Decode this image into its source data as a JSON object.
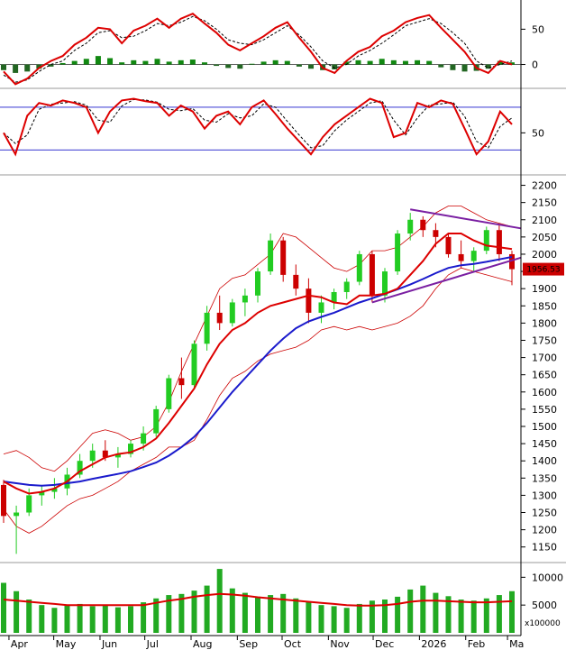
{
  "colors": {
    "up": "#22cc22",
    "down": "#cc0000",
    "ma_red": "#dd0000",
    "ma_blue": "#1a1acc",
    "band": "#cc0000",
    "trend_purple": "#7a1fa2",
    "macd_hist_up": "#118811",
    "macd_hist_down": "#226622",
    "rsi_level": "#1a1acc",
    "volume": "#22aa22",
    "last_price_bg": "#cc0000"
  },
  "last_price_label": "1956.53",
  "volume_unit": "x100000",
  "chart_data": [
    {
      "id": "macd",
      "type": "line",
      "y_ticks": [
        50,
        0
      ],
      "ylim": [
        -30,
        85
      ],
      "signal": [
        -15,
        -25,
        -22,
        -10,
        0,
        5,
        20,
        30,
        45,
        48,
        38,
        40,
        48,
        58,
        55,
        60,
        68,
        62,
        50,
        35,
        30,
        28,
        35,
        45,
        55,
        42,
        25,
        5,
        -5,
        0,
        12,
        20,
        30,
        42,
        55,
        60,
        65,
        58,
        45,
        30,
        5,
        -5,
        0,
        5
      ],
      "macd": [
        -10,
        -28,
        -20,
        -5,
        5,
        12,
        28,
        38,
        52,
        50,
        30,
        48,
        55,
        65,
        52,
        65,
        72,
        58,
        45,
        28,
        20,
        30,
        40,
        52,
        60,
        38,
        18,
        -5,
        -12,
        5,
        18,
        25,
        40,
        48,
        60,
        66,
        70,
        52,
        35,
        18,
        -5,
        -12,
        5,
        0
      ],
      "histogram": [
        -8,
        -12,
        -10,
        -6,
        -3,
        2,
        5,
        8,
        12,
        9,
        3,
        6,
        5,
        8,
        4,
        6,
        7,
        3,
        -2,
        -5,
        -6,
        1,
        4,
        6,
        5,
        -3,
        -6,
        -8,
        -7,
        4,
        6,
        5,
        8,
        6,
        5,
        6,
        5,
        -4,
        -8,
        -10,
        -9,
        -6,
        5,
        3
      ]
    },
    {
      "id": "rsi",
      "type": "line",
      "y_ticks": [
        50
      ],
      "ylim": [
        5,
        100
      ],
      "levels": [
        80,
        30
      ],
      "rsi": [
        50,
        25,
        70,
        85,
        82,
        88,
        85,
        80,
        50,
        75,
        88,
        90,
        87,
        85,
        70,
        82,
        75,
        55,
        70,
        75,
        60,
        80,
        88,
        72,
        55,
        40,
        25,
        45,
        60,
        70,
        80,
        90,
        85,
        45,
        50,
        85,
        80,
        88,
        84,
        55,
        25,
        40,
        75,
        60
      ]
    },
    {
      "id": "price",
      "type": "candlestick",
      "y_ticks": [
        2200,
        2150,
        2100,
        2050,
        2000,
        1950,
        1900,
        1850,
        1800,
        1750,
        1700,
        1650,
        1600,
        1550,
        1500,
        1450,
        1400,
        1350,
        1300,
        1250,
        1200,
        1150
      ],
      "ylim": [
        1110,
        2225
      ],
      "x_ticks": [
        "Apr",
        "May",
        "Jun",
        "Jul",
        "Aug",
        "Sep",
        "Oct",
        "Nov",
        "Dec",
        "2026",
        "Feb",
        "Ma"
      ],
      "x_tick_days": [
        0,
        30,
        61,
        91,
        122,
        153,
        183,
        214,
        244,
        275,
        306,
        334
      ],
      "day_span": [
        -6,
        343
      ],
      "ohlc": [
        [
          1330,
          1345,
          1220,
          1240
        ],
        [
          1240,
          1270,
          1130,
          1250
        ],
        [
          1250,
          1320,
          1240,
          1300
        ],
        [
          1300,
          1330,
          1270,
          1310
        ],
        [
          1310,
          1350,
          1290,
          1320
        ],
        [
          1320,
          1380,
          1300,
          1360
        ],
        [
          1360,
          1420,
          1350,
          1400
        ],
        [
          1400,
          1450,
          1380,
          1430
        ],
        [
          1430,
          1460,
          1400,
          1410
        ],
        [
          1410,
          1440,
          1380,
          1420
        ],
        [
          1420,
          1460,
          1410,
          1450
        ],
        [
          1450,
          1500,
          1430,
          1480
        ],
        [
          1480,
          1560,
          1470,
          1550
        ],
        [
          1550,
          1650,
          1540,
          1640
        ],
        [
          1640,
          1700,
          1580,
          1620
        ],
        [
          1620,
          1750,
          1610,
          1740
        ],
        [
          1740,
          1850,
          1720,
          1830
        ],
        [
          1830,
          1880,
          1780,
          1800
        ],
        [
          1800,
          1870,
          1790,
          1860
        ],
        [
          1860,
          1900,
          1820,
          1880
        ],
        [
          1880,
          1960,
          1860,
          1950
        ],
        [
          1950,
          2060,
          1940,
          2040
        ],
        [
          2040,
          2050,
          1920,
          1940
        ],
        [
          1940,
          1970,
          1880,
          1900
        ],
        [
          1900,
          1930,
          1800,
          1830
        ],
        [
          1830,
          1880,
          1800,
          1860
        ],
        [
          1860,
          1900,
          1840,
          1890
        ],
        [
          1890,
          1930,
          1870,
          1920
        ],
        [
          1920,
          2010,
          1910,
          2000
        ],
        [
          2000,
          2010,
          1860,
          1880
        ],
        [
          1880,
          1960,
          1860,
          1950
        ],
        [
          1950,
          2070,
          1940,
          2060
        ],
        [
          2060,
          2120,
          2040,
          2100
        ],
        [
          2100,
          2110,
          2050,
          2070
        ],
        [
          2070,
          2090,
          2020,
          2050
        ],
        [
          2050,
          2060,
          1990,
          2000
        ],
        [
          2000,
          2040,
          1960,
          1980
        ],
        [
          1980,
          2020,
          1950,
          2010
        ],
        [
          2010,
          2080,
          2000,
          2070
        ],
        [
          2070,
          2090,
          1980,
          2000
        ],
        [
          2000,
          2010,
          1910,
          1956.53
        ]
      ],
      "ma_red": [
        1340,
        1320,
        1305,
        1310,
        1320,
        1340,
        1370,
        1390,
        1410,
        1420,
        1425,
        1440,
        1465,
        1510,
        1560,
        1610,
        1680,
        1740,
        1780,
        1800,
        1830,
        1850,
        1860,
        1870,
        1880,
        1875,
        1860,
        1855,
        1880,
        1880,
        1885,
        1900,
        1940,
        1980,
        2030,
        2060,
        2060,
        2040,
        2025,
        2020,
        2015
      ],
      "ma_blue": [
        1340,
        1335,
        1330,
        1328,
        1330,
        1335,
        1340,
        1348,
        1355,
        1362,
        1370,
        1382,
        1395,
        1415,
        1440,
        1470,
        1510,
        1555,
        1600,
        1640,
        1680,
        1720,
        1755,
        1785,
        1805,
        1818,
        1830,
        1845,
        1860,
        1872,
        1885,
        1898,
        1912,
        1928,
        1945,
        1960,
        1968,
        1972,
        1978,
        1985,
        1992
      ],
      "band_upper": [
        1420,
        1430,
        1410,
        1380,
        1370,
        1400,
        1440,
        1480,
        1490,
        1480,
        1460,
        1470,
        1500,
        1570,
        1660,
        1740,
        1820,
        1900,
        1930,
        1940,
        1970,
        2000,
        2060,
        2050,
        2020,
        1990,
        1960,
        1950,
        1970,
        2010,
        2010,
        2020,
        2050,
        2080,
        2120,
        2140,
        2140,
        2120,
        2100,
        2090,
        2080
      ],
      "band_lower": [
        1260,
        1210,
        1190,
        1210,
        1240,
        1270,
        1290,
        1300,
        1320,
        1340,
        1370,
        1390,
        1410,
        1440,
        1440,
        1460,
        1520,
        1590,
        1640,
        1660,
        1690,
        1710,
        1720,
        1730,
        1750,
        1780,
        1790,
        1780,
        1790,
        1780,
        1790,
        1800,
        1820,
        1850,
        1900,
        1940,
        1960,
        1950,
        1940,
        1930,
        1920
      ],
      "trendline_upper": [
        [
          2130,
          2090
        ],
        [
          2080,
          2075
        ]
      ],
      "trendline_lower": [
        [
          1860,
          1900
        ],
        [
          1980,
          1990
        ]
      ]
    },
    {
      "id": "volume",
      "type": "bar",
      "y_ticks": [
        10000,
        5000
      ],
      "ylim": [
        0,
        12000
      ],
      "values": [
        9000,
        7500,
        6000,
        5000,
        4500,
        5000,
        5200,
        4800,
        5100,
        4600,
        4800,
        5500,
        6200,
        6800,
        7000,
        7600,
        8500,
        11500,
        8000,
        7200,
        6500,
        6800,
        7000,
        6200,
        5600,
        5000,
        4800,
        4500,
        5200,
        5800,
        6000,
        6500,
        7800,
        8500,
        7200,
        6600,
        6000,
        5800,
        6200,
        6800,
        7500
      ],
      "ma": [
        6000,
        5800,
        5600,
        5400,
        5200,
        5000,
        5000,
        5000,
        5000,
        5000,
        5000,
        5000,
        5400,
        5800,
        6100,
        6500,
        6800,
        7000,
        6900,
        6700,
        6400,
        6200,
        6000,
        5800,
        5600,
        5400,
        5200,
        5000,
        4900,
        4900,
        5000,
        5200,
        5600,
        5800,
        5800,
        5700,
        5600,
        5500,
        5500,
        5600,
        5700
      ]
    }
  ]
}
